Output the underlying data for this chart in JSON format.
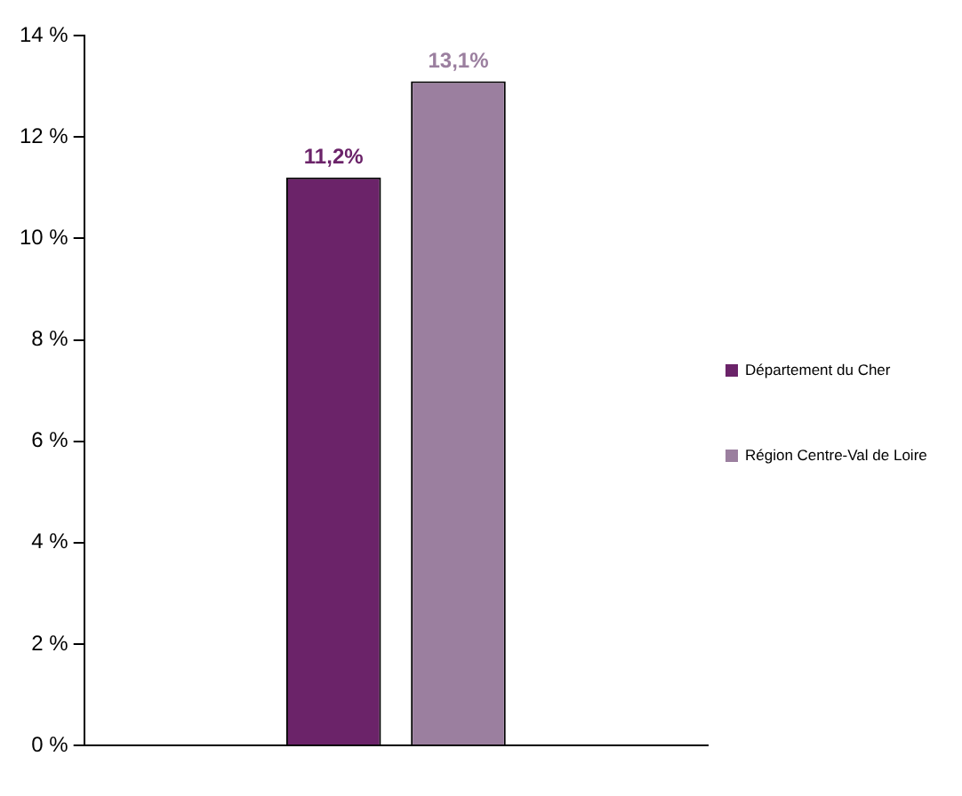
{
  "chart_data": {
    "type": "bar",
    "categories": [
      null
    ],
    "series": [
      {
        "name": "Département du Cher",
        "color": "#6b2369",
        "values": [
          11.2
        ],
        "value_labels": [
          "11,2%"
        ]
      },
      {
        "name": "Région Centre-Val de Loire",
        "color": "#9b7f9f",
        "values": [
          13.1
        ],
        "value_labels": [
          "13,1%"
        ]
      }
    ],
    "ylim": [
      0,
      14
    ],
    "yticks": [
      {
        "value": 0,
        "label": "0 %"
      },
      {
        "value": 2,
        "label": "2 %"
      },
      {
        "value": 4,
        "label": "4 %"
      },
      {
        "value": 6,
        "label": "6 %"
      },
      {
        "value": 8,
        "label": "8 %"
      },
      {
        "value": 10,
        "label": "10 %"
      },
      {
        "value": 12,
        "label": "12 %"
      },
      {
        "value": 14,
        "label": "14 %"
      }
    ],
    "grid": false,
    "legend": "right"
  }
}
